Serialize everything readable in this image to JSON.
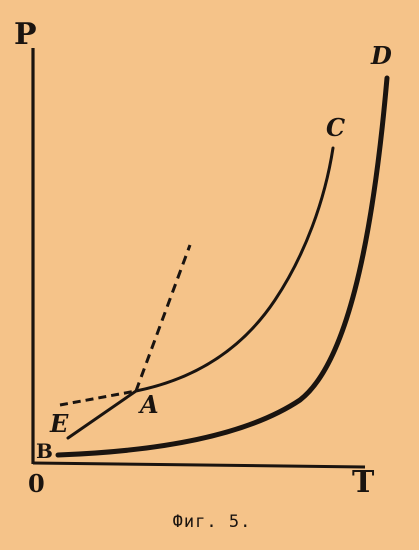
{
  "labels": {
    "p_axis": "P",
    "t_axis": "T",
    "origin": "0",
    "a": "A",
    "b": "B",
    "c": "C",
    "d": "D",
    "e": "E"
  },
  "caption": "Фиг. 5.",
  "colors": {
    "background": "#f5c389",
    "ink": "#1a1410"
  }
}
